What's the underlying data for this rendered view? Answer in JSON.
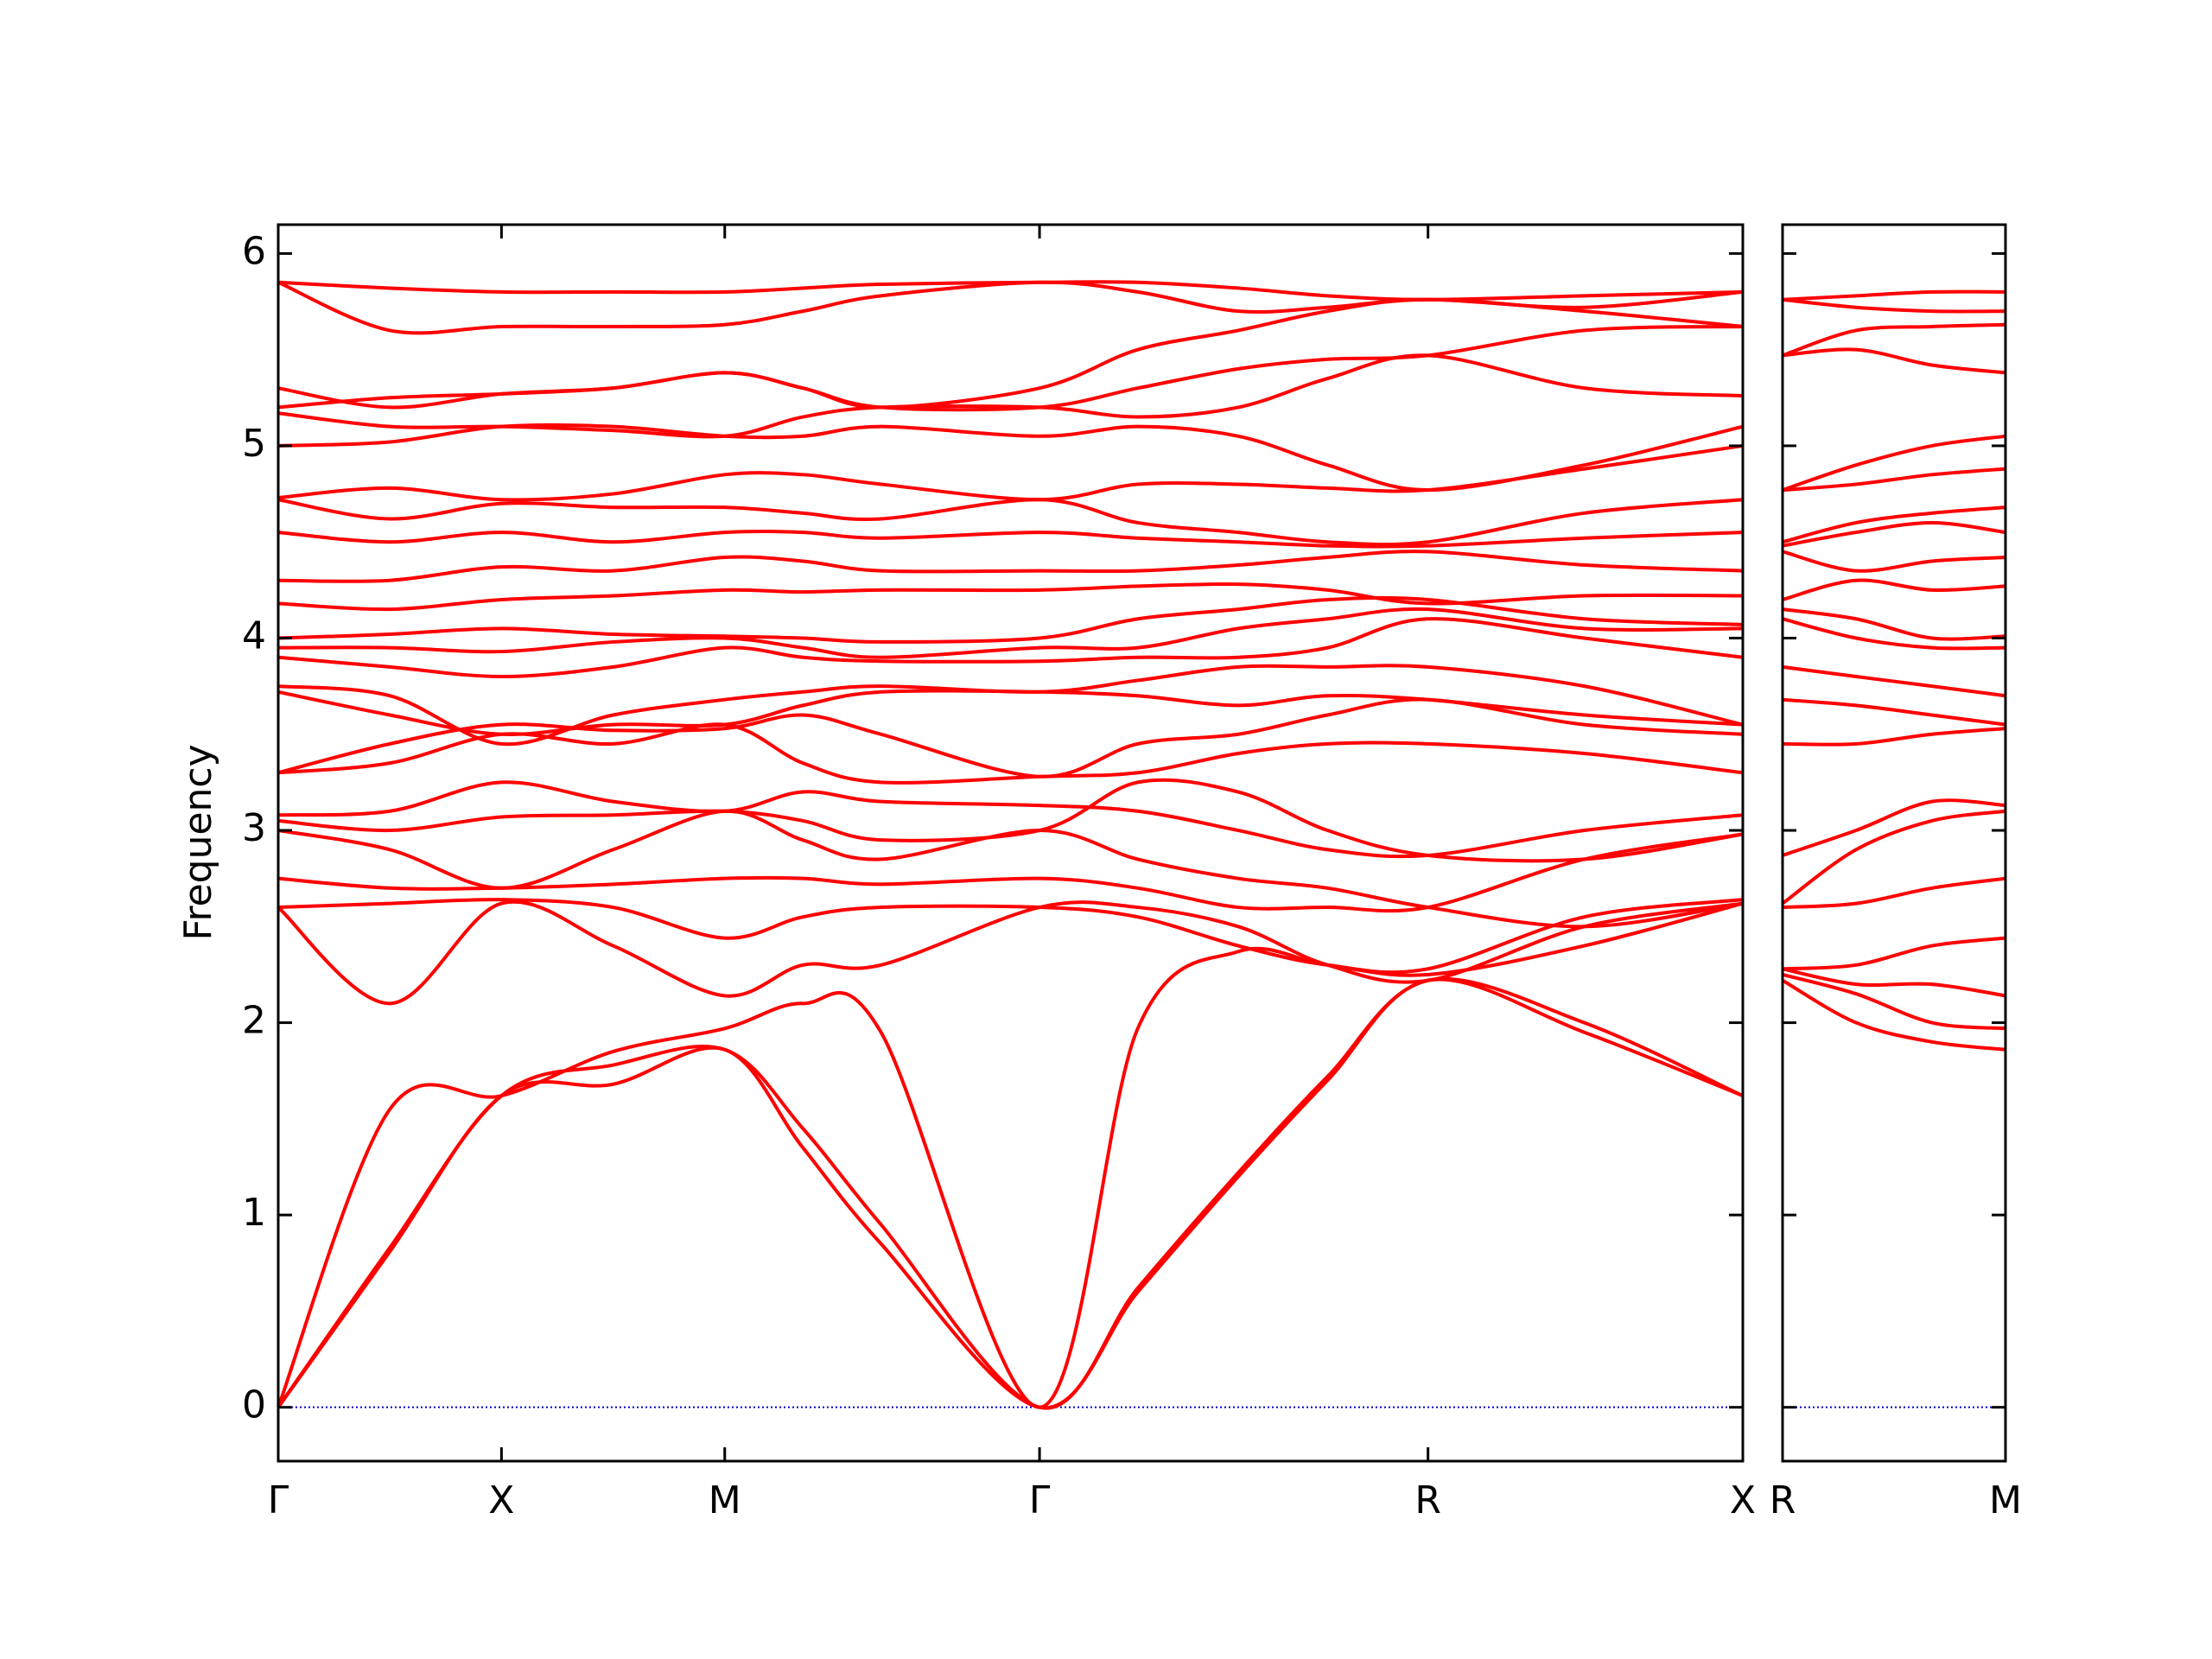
{
  "chart_data": [
    {
      "type": "line",
      "ylabel": "Frequency",
      "color": "#ff0000",
      "x": [
        0,
        0.5,
        1,
        1.5,
        2,
        2.35,
        2.7,
        3.41,
        3.85,
        4.3,
        4.7,
        5.15,
        5.85,
        6.56
      ],
      "xlim": [
        0,
        6.56
      ],
      "xticks": [
        {
          "value": 0,
          "label": "Γ"
        },
        {
          "value": 1,
          "label": "X"
        },
        {
          "value": 2,
          "label": "M"
        },
        {
          "value": 3.41,
          "label": "Γ"
        },
        {
          "value": 5.15,
          "label": "R"
        },
        {
          "value": 6.56,
          "label": "X"
        }
      ],
      "ylim": [
        -0.28,
        6.15
      ],
      "yticks": [
        0,
        1,
        2,
        3,
        4,
        5,
        6
      ],
      "series": [
        {
          "values": [
            0,
            0.81,
            1.62,
            1.68,
            1.86,
            1.35,
            0.85,
            0,
            0.6,
            1.2,
            1.7,
            2.22,
            1.95,
            1.62
          ]
        },
        {
          "values": [
            0,
            0.83,
            1.62,
            1.78,
            1.86,
            1.45,
            0.95,
            0,
            0.62,
            1.22,
            1.72,
            2.22,
            2.0,
            1.62
          ]
        },
        {
          "values": [
            0,
            1.55,
            1.62,
            1.85,
            1.97,
            2.1,
            1.95,
            0,
            1.97,
            2.37,
            2.3,
            2.25,
            2.4,
            2.62
          ]
        },
        {
          "values": [
            2.6,
            2.1,
            2.62,
            2.4,
            2.14,
            2.3,
            2.3,
            2.6,
            2.6,
            2.5,
            2.3,
            2.22,
            2.5,
            2.62
          ]
        },
        {
          "values": [
            2.6,
            2.62,
            2.64,
            2.6,
            2.44,
            2.55,
            2.6,
            2.6,
            2.55,
            2.4,
            2.3,
            2.28,
            2.55,
            2.64
          ]
        },
        {
          "values": [
            2.75,
            2.7,
            2.7,
            2.72,
            2.75,
            2.75,
            2.72,
            2.75,
            2.7,
            2.6,
            2.6,
            2.6,
            2.85,
            2.98
          ]
        },
        {
          "values": [
            3.0,
            2.9,
            2.7,
            2.9,
            3.1,
            2.95,
            2.85,
            3.0,
            2.85,
            2.75,
            2.7,
            2.6,
            2.5,
            2.62
          ]
        },
        {
          "values": [
            3.05,
            3.0,
            3.07,
            3.08,
            3.1,
            3.05,
            2.95,
            3.0,
            3.25,
            3.2,
            3.0,
            2.87,
            2.85,
            2.98
          ]
        },
        {
          "values": [
            3.08,
            3.1,
            3.25,
            3.15,
            3.1,
            3.2,
            3.15,
            3.13,
            3.1,
            3.0,
            2.9,
            2.87,
            3.0,
            3.08
          ]
        },
        {
          "values": [
            3.3,
            3.35,
            3.5,
            3.45,
            3.55,
            3.35,
            3.25,
            3.28,
            3.3,
            3.4,
            3.45,
            3.45,
            3.4,
            3.3
          ]
        },
        {
          "values": [
            3.3,
            3.45,
            3.55,
            3.52,
            3.53,
            3.6,
            3.5,
            3.28,
            3.45,
            3.5,
            3.6,
            3.68,
            3.55,
            3.5
          ]
        },
        {
          "values": [
            3.72,
            3.6,
            3.5,
            3.55,
            3.55,
            3.65,
            3.72,
            3.72,
            3.7,
            3.65,
            3.7,
            3.68,
            3.6,
            3.55
          ]
        },
        {
          "values": [
            3.75,
            3.7,
            3.45,
            3.6,
            3.68,
            3.72,
            3.75,
            3.72,
            3.78,
            3.85,
            3.85,
            3.85,
            3.75,
            3.55
          ]
        },
        {
          "values": [
            3.9,
            3.85,
            3.8,
            3.85,
            3.95,
            3.9,
            3.88,
            3.88,
            3.9,
            3.9,
            3.95,
            4.1,
            4.0,
            3.9
          ]
        },
        {
          "values": [
            3.95,
            3.95,
            3.93,
            3.98,
            4.0,
            3.95,
            3.9,
            3.95,
            3.95,
            4.05,
            4.1,
            4.15,
            4.05,
            4.05
          ]
        },
        {
          "values": [
            4.0,
            4.02,
            4.05,
            4.02,
            4.01,
            4.0,
            3.98,
            4.0,
            4.1,
            4.15,
            4.2,
            4.2,
            4.1,
            4.07
          ]
        },
        {
          "values": [
            4.18,
            4.15,
            4.2,
            4.22,
            4.25,
            4.24,
            4.25,
            4.25,
            4.27,
            4.28,
            4.25,
            4.18,
            4.22,
            4.22
          ]
        },
        {
          "values": [
            4.3,
            4.3,
            4.37,
            4.35,
            4.42,
            4.4,
            4.35,
            4.35,
            4.35,
            4.38,
            4.42,
            4.45,
            4.38,
            4.35
          ]
        },
        {
          "values": [
            4.55,
            4.5,
            4.55,
            4.5,
            4.55,
            4.55,
            4.52,
            4.55,
            4.52,
            4.5,
            4.48,
            4.48,
            4.52,
            4.55
          ]
        },
        {
          "values": [
            4.72,
            4.62,
            4.7,
            4.68,
            4.68,
            4.65,
            4.62,
            4.72,
            4.6,
            4.55,
            4.5,
            4.5,
            4.65,
            4.72
          ]
        },
        {
          "values": [
            4.73,
            4.78,
            4.72,
            4.75,
            4.85,
            4.85,
            4.8,
            4.72,
            4.8,
            4.8,
            4.78,
            4.77,
            4.88,
            5.0
          ]
        },
        {
          "values": [
            5.0,
            5.02,
            5.1,
            5.1,
            5.05,
            5.05,
            5.1,
            5.05,
            5.1,
            5.05,
            4.9,
            4.77,
            4.9,
            5.1
          ]
        },
        {
          "values": [
            5.17,
            5.1,
            5.1,
            5.08,
            5.05,
            5.15,
            5.2,
            5.2,
            5.15,
            5.2,
            5.35,
            5.47,
            5.3,
            5.26
          ]
        },
        {
          "values": [
            5.2,
            5.25,
            5.27,
            5.3,
            5.38,
            5.3,
            5.2,
            5.2,
            5.3,
            5.4,
            5.45,
            5.47,
            5.6,
            5.62
          ]
        },
        {
          "values": [
            5.3,
            5.2,
            5.27,
            5.3,
            5.38,
            5.3,
            5.2,
            5.3,
            5.5,
            5.6,
            5.7,
            5.76,
            5.7,
            5.62
          ]
        },
        {
          "values": [
            5.85,
            5.6,
            5.62,
            5.62,
            5.63,
            5.7,
            5.78,
            5.85,
            5.8,
            5.7,
            5.72,
            5.76,
            5.72,
            5.8
          ]
        },
        {
          "values": [
            5.85,
            5.82,
            5.8,
            5.8,
            5.8,
            5.82,
            5.84,
            5.85,
            5.85,
            5.82,
            5.78,
            5.76,
            5.78,
            5.8
          ]
        }
      ]
    },
    {
      "type": "line",
      "color": "#ff0000",
      "x": [
        0,
        0.33,
        0.67,
        1
      ],
      "xlim": [
        0,
        1
      ],
      "xticks": [
        {
          "value": 0,
          "label": "R"
        },
        {
          "value": 1,
          "label": "M"
        }
      ],
      "ylim": [
        -0.28,
        6.15
      ],
      "series": [
        {
          "values": [
            2.22,
            2.0,
            1.9,
            1.86
          ]
        },
        {
          "values": [
            2.25,
            2.15,
            2.0,
            1.97
          ]
        },
        {
          "values": [
            2.28,
            2.2,
            2.2,
            2.14
          ]
        },
        {
          "values": [
            2.28,
            2.3,
            2.4,
            2.44
          ]
        },
        {
          "values": [
            2.6,
            2.62,
            2.7,
            2.75
          ]
        },
        {
          "values": [
            2.62,
            2.9,
            3.05,
            3.1
          ]
        },
        {
          "values": [
            2.87,
            3.0,
            3.15,
            3.13
          ]
        },
        {
          "values": [
            3.45,
            3.45,
            3.5,
            3.53
          ]
        },
        {
          "values": [
            3.68,
            3.65,
            3.6,
            3.55
          ]
        },
        {
          "values": [
            3.85,
            3.8,
            3.75,
            3.7
          ]
        },
        {
          "values": [
            4.1,
            4.0,
            3.95,
            3.95
          ]
        },
        {
          "values": [
            4.15,
            4.1,
            4.0,
            4.01
          ]
        },
        {
          "values": [
            4.2,
            4.3,
            4.25,
            4.27
          ]
        },
        {
          "values": [
            4.45,
            4.35,
            4.4,
            4.42
          ]
        },
        {
          "values": [
            4.48,
            4.55,
            4.6,
            4.55
          ]
        },
        {
          "values": [
            4.5,
            4.6,
            4.65,
            4.68
          ]
        },
        {
          "values": [
            4.77,
            4.8,
            4.85,
            4.88
          ]
        },
        {
          "values": [
            4.77,
            4.9,
            5.0,
            5.05
          ]
        },
        {
          "values": [
            5.47,
            5.5,
            5.42,
            5.38
          ]
        },
        {
          "values": [
            5.47,
            5.6,
            5.62,
            5.63
          ]
        },
        {
          "values": [
            5.76,
            5.72,
            5.7,
            5.7
          ]
        },
        {
          "values": [
            5.76,
            5.78,
            5.8,
            5.8
          ]
        }
      ]
    }
  ]
}
